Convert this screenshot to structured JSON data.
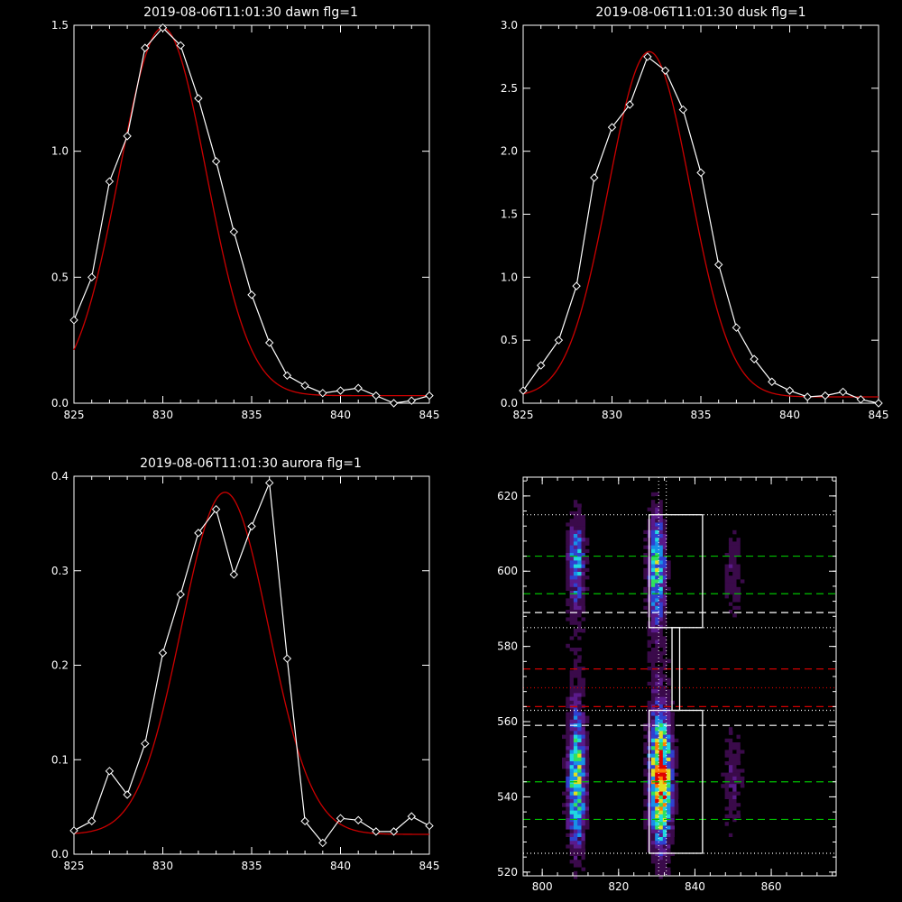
{
  "chart_data": [
    {
      "type": "line",
      "title": "2019-08-06T11:01:30 dawn flg=1",
      "xlim": [
        825,
        845
      ],
      "ylim": [
        0,
        1.5
      ],
      "xticks": [
        "825",
        "830",
        "835",
        "840",
        "845"
      ],
      "yticks": [
        "0.0",
        "0.5",
        "1.0",
        "1.5"
      ],
      "colors": {
        "measured": "#ffffff",
        "fit": "#cc0000"
      },
      "measured": {
        "x": [
          825,
          826,
          827,
          828,
          829,
          830,
          831,
          832,
          833,
          834,
          835,
          836,
          837,
          838,
          839,
          840,
          841,
          842,
          843,
          844,
          845
        ],
        "y": [
          0.33,
          0.5,
          0.88,
          1.06,
          1.41,
          1.49,
          1.42,
          1.21,
          0.96,
          0.68,
          0.43,
          0.24,
          0.11,
          0.07,
          0.04,
          0.05,
          0.06,
          0.03,
          0.0,
          0.01,
          0.03
        ]
      },
      "fit": {
        "amplitude": 1.46,
        "center": 830.0,
        "sigma": 2.45,
        "offset": 0.03
      }
    },
    {
      "type": "line",
      "title": "2019-08-06T11:01:30 dusk flg=1",
      "xlim": [
        825,
        845
      ],
      "ylim": [
        0,
        3.0
      ],
      "xticks": [
        "825",
        "830",
        "835",
        "840",
        "845"
      ],
      "yticks": [
        "0.0",
        "0.5",
        "1.0",
        "1.5",
        "2.0",
        "2.5",
        "3.0"
      ],
      "colors": {
        "measured": "#ffffff",
        "fit": "#cc0000"
      },
      "measured": {
        "x": [
          825,
          826,
          827,
          828,
          829,
          830,
          831,
          832,
          833,
          834,
          835,
          836,
          837,
          838,
          839,
          840,
          841,
          842,
          843,
          844,
          845
        ],
        "y": [
          0.1,
          0.3,
          0.5,
          0.93,
          1.79,
          2.19,
          2.37,
          2.75,
          2.64,
          2.33,
          1.83,
          1.1,
          0.6,
          0.35,
          0.17,
          0.1,
          0.05,
          0.06,
          0.09,
          0.03,
          0.0
        ]
      },
      "fit": {
        "amplitude": 2.74,
        "center": 832.1,
        "sigma": 2.3,
        "offset": 0.05
      }
    },
    {
      "type": "line",
      "title": "2019-08-06T11:01:30 aurora flg=1",
      "xlim": [
        825,
        845
      ],
      "ylim": [
        0,
        0.4
      ],
      "xticks": [
        "825",
        "830",
        "835",
        "840",
        "845"
      ],
      "yticks": [
        "0.0",
        "0.1",
        "0.2",
        "0.3",
        "0.4"
      ],
      "colors": {
        "measured": "#ffffff",
        "fit": "#cc0000"
      },
      "measured": {
        "x": [
          825,
          826,
          827,
          828,
          829,
          830,
          831,
          832,
          833,
          834,
          835,
          836,
          837,
          838,
          839,
          840,
          841,
          842,
          843,
          844,
          845
        ],
        "y": [
          0.025,
          0.035,
          0.088,
          0.063,
          0.117,
          0.213,
          0.275,
          0.34,
          0.365,
          0.296,
          0.347,
          0.393,
          0.207,
          0.035,
          0.012,
          0.038,
          0.036,
          0.024,
          0.024,
          0.04,
          0.03
        ]
      },
      "fit": {
        "amplitude": 0.362,
        "center": 833.5,
        "sigma": 2.45,
        "offset": 0.021
      }
    },
    {
      "type": "heatmap",
      "xlim": [
        795,
        877
      ],
      "ylim": [
        519,
        625
      ],
      "xticks": [
        "800",
        "820",
        "840",
        "860"
      ],
      "yticks": [
        "520",
        "540",
        "560",
        "580",
        "600",
        "620"
      ],
      "colormap": [
        "#000000",
        "#3a0a4a",
        "#5a1a8a",
        "#3040d0",
        "#1890e8",
        "#20d8e0",
        "#30e060",
        "#e0e020",
        "#ff8000",
        "#e00000"
      ],
      "blobs": [
        {
          "x": 809,
          "y": 602,
          "sx": 1.6,
          "sy": 9,
          "amp": 0.42
        },
        {
          "x": 809,
          "y": 545,
          "sx": 1.7,
          "sy": 13,
          "amp": 0.6
        },
        {
          "x": 830,
          "y": 601,
          "sx": 1.6,
          "sy": 10,
          "amp": 0.55
        },
        {
          "x": 831,
          "y": 545,
          "sx": 2.0,
          "sy": 12,
          "amp": 0.95
        },
        {
          "x": 850,
          "y": 600,
          "sx": 2.0,
          "sy": 9,
          "amp": 0.14
        },
        {
          "x": 850,
          "y": 545,
          "sx": 2.0,
          "sy": 11,
          "amp": 0.16
        },
        {
          "x": 809,
          "y": 578,
          "sx": 3,
          "sy": 8,
          "amp": 0.05
        },
        {
          "x": 830,
          "y": 578,
          "sx": 2.5,
          "sy": 8,
          "amp": 0.08
        }
      ],
      "rectangles": [
        {
          "x1": 828,
          "x2": 842,
          "y1": 585,
          "y2": 615
        },
        {
          "x1": 834,
          "x2": 836,
          "y1": 563,
          "y2": 585
        },
        {
          "x1": 828,
          "x2": 842,
          "y1": 525,
          "y2": 563
        }
      ],
      "hlines": [
        {
          "y": 615,
          "color": "#ffffff",
          "style": "dotted"
        },
        {
          "y": 604,
          "color": "#00c000",
          "style": "dashed"
        },
        {
          "y": 594,
          "color": "#00c000",
          "style": "dashed"
        },
        {
          "y": 589,
          "color": "#ffffff",
          "style": "dashed"
        },
        {
          "y": 585,
          "color": "#ffffff",
          "style": "dotted"
        },
        {
          "y": 574,
          "color": "#d00000",
          "style": "dashed"
        },
        {
          "y": 569,
          "color": "#d00000",
          "style": "dotted"
        },
        {
          "y": 564,
          "color": "#d00000",
          "style": "dashed"
        },
        {
          "y": 563,
          "color": "#ffffff",
          "style": "dotted"
        },
        {
          "y": 559,
          "color": "#ffffff",
          "style": "dashed"
        },
        {
          "y": 544,
          "color": "#00c000",
          "style": "dashed"
        },
        {
          "y": 534,
          "color": "#00c000",
          "style": "dashed"
        },
        {
          "y": 525,
          "color": "#ffffff",
          "style": "dotted"
        }
      ],
      "vlines": [
        {
          "x": 830.5,
          "color": "#ffffff",
          "style": "dotted"
        },
        {
          "x": 832.5,
          "color": "#ffffff",
          "style": "dotted"
        }
      ]
    }
  ]
}
